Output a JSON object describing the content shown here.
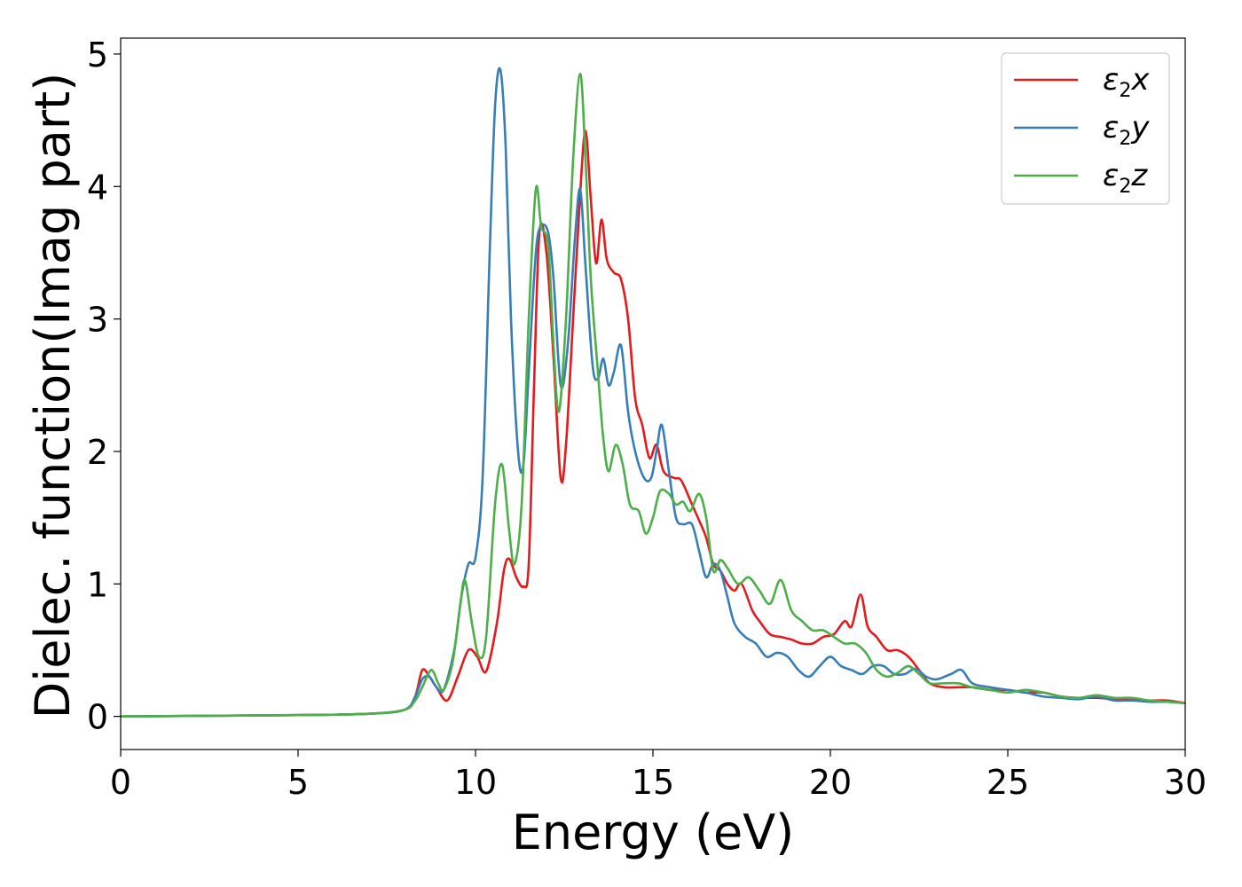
{
  "chart_data": {
    "type": "line",
    "title": "",
    "xlabel": "Energy (eV)",
    "ylabel": "Dielec. function(Imag part)",
    "xlim": [
      0,
      30
    ],
    "ylim": [
      -0.25,
      5.12
    ],
    "xticks": [
      0,
      5,
      10,
      15,
      20,
      25,
      30
    ],
    "xtick_labels": [
      "0",
      "5",
      "10",
      "15",
      "20",
      "25",
      "30"
    ],
    "yticks": [
      0,
      1,
      2,
      3,
      4,
      5
    ],
    "ytick_labels": [
      "0",
      "1",
      "2",
      "3",
      "4",
      "5"
    ],
    "grid": false,
    "legend_position": "top-right",
    "series": [
      {
        "name": "ε2x",
        "legend_base": "ε",
        "legend_sub": "2",
        "legend_suffix": "x",
        "color": "#e41a1c",
        "points": [
          [
            0,
            0
          ],
          [
            5,
            0.01
          ],
          [
            7,
            0.02
          ],
          [
            8,
            0.05
          ],
          [
            8.3,
            0.15
          ],
          [
            8.5,
            0.35
          ],
          [
            8.7,
            0.3
          ],
          [
            8.9,
            0.22
          ],
          [
            9.2,
            0.12
          ],
          [
            9.5,
            0.3
          ],
          [
            9.8,
            0.5
          ],
          [
            10.05,
            0.45
          ],
          [
            10.3,
            0.34
          ],
          [
            10.6,
            0.7
          ],
          [
            10.8,
            1.1
          ],
          [
            10.95,
            1.19
          ],
          [
            11.15,
            1.05
          ],
          [
            11.35,
            0.98
          ],
          [
            11.5,
            1.15
          ],
          [
            11.65,
            2.5
          ],
          [
            11.8,
            3.65
          ],
          [
            12.0,
            3.5
          ],
          [
            12.2,
            2.7
          ],
          [
            12.4,
            1.8
          ],
          [
            12.55,
            2.05
          ],
          [
            12.75,
            3.0
          ],
          [
            12.95,
            3.95
          ],
          [
            13.1,
            4.42
          ],
          [
            13.25,
            3.9
          ],
          [
            13.4,
            3.42
          ],
          [
            13.55,
            3.75
          ],
          [
            13.7,
            3.45
          ],
          [
            13.9,
            3.35
          ],
          [
            14.1,
            3.3
          ],
          [
            14.3,
            3.0
          ],
          [
            14.5,
            2.4
          ],
          [
            14.7,
            2.2
          ],
          [
            14.9,
            1.95
          ],
          [
            15.1,
            2.05
          ],
          [
            15.3,
            1.85
          ],
          [
            15.6,
            1.8
          ],
          [
            15.8,
            1.78
          ],
          [
            16.1,
            1.6
          ],
          [
            16.3,
            1.48
          ],
          [
            16.5,
            1.35
          ],
          [
            16.7,
            1.15
          ],
          [
            16.9,
            1.1
          ],
          [
            17.1,
            1.0
          ],
          [
            17.3,
            0.95
          ],
          [
            17.5,
            1.0
          ],
          [
            17.8,
            0.8
          ],
          [
            18.0,
            0.72
          ],
          [
            18.3,
            0.62
          ],
          [
            18.6,
            0.6
          ],
          [
            18.9,
            0.58
          ],
          [
            19.2,
            0.55
          ],
          [
            19.5,
            0.55
          ],
          [
            19.8,
            0.6
          ],
          [
            20.1,
            0.62
          ],
          [
            20.4,
            0.72
          ],
          [
            20.6,
            0.68
          ],
          [
            20.85,
            0.92
          ],
          [
            21.05,
            0.68
          ],
          [
            21.3,
            0.6
          ],
          [
            21.6,
            0.5
          ],
          [
            21.9,
            0.5
          ],
          [
            22.2,
            0.45
          ],
          [
            22.5,
            0.35
          ],
          [
            22.8,
            0.25
          ],
          [
            23.2,
            0.22
          ],
          [
            23.6,
            0.22
          ],
          [
            24.0,
            0.22
          ],
          [
            24.5,
            0.2
          ],
          [
            25.0,
            0.2
          ],
          [
            25.5,
            0.18
          ],
          [
            26.0,
            0.18
          ],
          [
            26.5,
            0.15
          ],
          [
            27.0,
            0.14
          ],
          [
            27.5,
            0.14
          ],
          [
            28.0,
            0.13
          ],
          [
            28.5,
            0.13
          ],
          [
            29.0,
            0.12
          ],
          [
            29.5,
            0.12
          ],
          [
            30,
            0.1
          ]
        ]
      },
      {
        "name": "ε2y",
        "legend_base": "ε",
        "legend_sub": "2",
        "legend_suffix": "y",
        "color": "#377eb8",
        "points": [
          [
            0,
            0
          ],
          [
            5,
            0.01
          ],
          [
            7,
            0.02
          ],
          [
            8,
            0.05
          ],
          [
            8.3,
            0.15
          ],
          [
            8.5,
            0.28
          ],
          [
            8.7,
            0.3
          ],
          [
            8.9,
            0.22
          ],
          [
            9.1,
            0.2
          ],
          [
            9.4,
            0.5
          ],
          [
            9.6,
            0.9
          ],
          [
            9.8,
            1.15
          ],
          [
            10.0,
            1.2
          ],
          [
            10.2,
            1.8
          ],
          [
            10.4,
            3.5
          ],
          [
            10.55,
            4.6
          ],
          [
            10.7,
            4.88
          ],
          [
            10.85,
            4.3
          ],
          [
            11.0,
            3.0
          ],
          [
            11.2,
            2.0
          ],
          [
            11.35,
            1.9
          ],
          [
            11.5,
            2.6
          ],
          [
            11.7,
            3.5
          ],
          [
            11.85,
            3.7
          ],
          [
            12.05,
            3.65
          ],
          [
            12.2,
            3.3
          ],
          [
            12.4,
            2.5
          ],
          [
            12.6,
            2.8
          ],
          [
            12.8,
            3.6
          ],
          [
            12.95,
            3.98
          ],
          [
            13.1,
            3.4
          ],
          [
            13.3,
            2.65
          ],
          [
            13.45,
            2.55
          ],
          [
            13.6,
            2.7
          ],
          [
            13.75,
            2.5
          ],
          [
            13.9,
            2.6
          ],
          [
            14.1,
            2.8
          ],
          [
            14.3,
            2.3
          ],
          [
            14.5,
            2.0
          ],
          [
            14.75,
            1.8
          ],
          [
            14.95,
            1.8
          ],
          [
            15.1,
            2.0
          ],
          [
            15.25,
            2.2
          ],
          [
            15.45,
            1.85
          ],
          [
            15.65,
            1.5
          ],
          [
            15.85,
            1.45
          ],
          [
            16.1,
            1.45
          ],
          [
            16.3,
            1.25
          ],
          [
            16.5,
            1.05
          ],
          [
            16.7,
            1.15
          ],
          [
            16.9,
            1.1
          ],
          [
            17.1,
            0.9
          ],
          [
            17.3,
            0.7
          ],
          [
            17.6,
            0.6
          ],
          [
            17.9,
            0.55
          ],
          [
            18.2,
            0.45
          ],
          [
            18.5,
            0.48
          ],
          [
            18.8,
            0.45
          ],
          [
            19.1,
            0.35
          ],
          [
            19.4,
            0.3
          ],
          [
            19.7,
            0.38
          ],
          [
            20.0,
            0.45
          ],
          [
            20.3,
            0.38
          ],
          [
            20.6,
            0.35
          ],
          [
            20.9,
            0.32
          ],
          [
            21.2,
            0.38
          ],
          [
            21.5,
            0.38
          ],
          [
            21.8,
            0.32
          ],
          [
            22.1,
            0.32
          ],
          [
            22.4,
            0.36
          ],
          [
            22.7,
            0.3
          ],
          [
            23.0,
            0.28
          ],
          [
            23.4,
            0.32
          ],
          [
            23.7,
            0.35
          ],
          [
            24.0,
            0.25
          ],
          [
            24.5,
            0.22
          ],
          [
            25.0,
            0.2
          ],
          [
            25.5,
            0.18
          ],
          [
            26.0,
            0.15
          ],
          [
            26.5,
            0.14
          ],
          [
            27.0,
            0.13
          ],
          [
            27.5,
            0.15
          ],
          [
            28.0,
            0.12
          ],
          [
            28.5,
            0.12
          ],
          [
            29.0,
            0.11
          ],
          [
            29.5,
            0.11
          ],
          [
            30,
            0.1
          ]
        ]
      },
      {
        "name": "ε2z",
        "legend_base": "ε",
        "legend_sub": "2",
        "legend_suffix": "z",
        "color": "#4daf4a",
        "points": [
          [
            0,
            0
          ],
          [
            5,
            0.01
          ],
          [
            7,
            0.02
          ],
          [
            8,
            0.05
          ],
          [
            8.3,
            0.12
          ],
          [
            8.5,
            0.22
          ],
          [
            8.75,
            0.35
          ],
          [
            8.95,
            0.25
          ],
          [
            9.1,
            0.2
          ],
          [
            9.35,
            0.4
          ],
          [
            9.55,
            0.8
          ],
          [
            9.7,
            1.03
          ],
          [
            9.9,
            0.7
          ],
          [
            10.1,
            0.45
          ],
          [
            10.3,
            0.6
          ],
          [
            10.55,
            1.6
          ],
          [
            10.75,
            1.9
          ],
          [
            10.95,
            1.4
          ],
          [
            11.1,
            1.15
          ],
          [
            11.3,
            1.6
          ],
          [
            11.5,
            3.0
          ],
          [
            11.7,
            3.98
          ],
          [
            11.85,
            3.7
          ],
          [
            12.05,
            3.55
          ],
          [
            12.2,
            2.8
          ],
          [
            12.35,
            2.3
          ],
          [
            12.55,
            3.0
          ],
          [
            12.75,
            4.2
          ],
          [
            12.95,
            4.85
          ],
          [
            13.1,
            4.2
          ],
          [
            13.25,
            3.3
          ],
          [
            13.45,
            2.6
          ],
          [
            13.6,
            2.1
          ],
          [
            13.75,
            1.85
          ],
          [
            13.95,
            2.05
          ],
          [
            14.15,
            1.9
          ],
          [
            14.35,
            1.6
          ],
          [
            14.6,
            1.55
          ],
          [
            14.8,
            1.38
          ],
          [
            15.0,
            1.5
          ],
          [
            15.2,
            1.7
          ],
          [
            15.45,
            1.68
          ],
          [
            15.65,
            1.6
          ],
          [
            15.85,
            1.62
          ],
          [
            16.05,
            1.55
          ],
          [
            16.3,
            1.68
          ],
          [
            16.5,
            1.5
          ],
          [
            16.7,
            1.1
          ],
          [
            16.9,
            1.18
          ],
          [
            17.1,
            1.12
          ],
          [
            17.4,
            1.0
          ],
          [
            17.7,
            1.05
          ],
          [
            18.0,
            0.95
          ],
          [
            18.3,
            0.85
          ],
          [
            18.6,
            1.03
          ],
          [
            18.9,
            0.8
          ],
          [
            19.2,
            0.72
          ],
          [
            19.5,
            0.65
          ],
          [
            19.8,
            0.65
          ],
          [
            20.1,
            0.6
          ],
          [
            20.4,
            0.55
          ],
          [
            20.7,
            0.55
          ],
          [
            21.0,
            0.48
          ],
          [
            21.3,
            0.35
          ],
          [
            21.6,
            0.3
          ],
          [
            21.9,
            0.33
          ],
          [
            22.2,
            0.38
          ],
          [
            22.5,
            0.32
          ],
          [
            22.8,
            0.25
          ],
          [
            23.2,
            0.25
          ],
          [
            23.6,
            0.25
          ],
          [
            24.0,
            0.22
          ],
          [
            24.5,
            0.2
          ],
          [
            25.0,
            0.18
          ],
          [
            25.5,
            0.2
          ],
          [
            26.0,
            0.18
          ],
          [
            26.5,
            0.15
          ],
          [
            27.0,
            0.14
          ],
          [
            27.5,
            0.16
          ],
          [
            28.0,
            0.14
          ],
          [
            28.5,
            0.14
          ],
          [
            29.0,
            0.12
          ],
          [
            29.5,
            0.11
          ],
          [
            30,
            0.1
          ]
        ]
      }
    ]
  }
}
